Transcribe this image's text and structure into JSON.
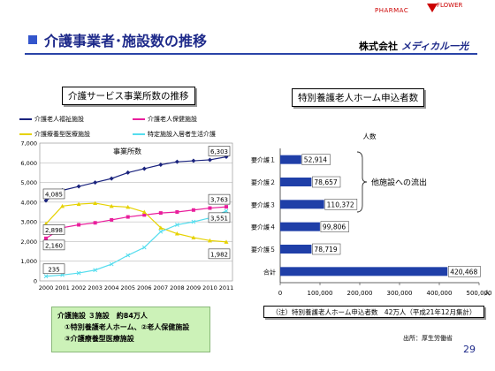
{
  "header": {
    "title": "介護事業者･施設数の推移",
    "logo_line1": "PHARMAC",
    "logo_line2": "FLOWER",
    "company_prefix": "株式会社",
    "company_name": "メディカル一光",
    "accent": "#1e2a8a"
  },
  "left_panel_title": "介護サービス事業所数の推移",
  "right_panel_title": "特別養護老人ホーム申込者数",
  "chart_data": [
    {
      "type": "line",
      "title": "事業所数",
      "x": [
        "2000",
        "2001",
        "2002",
        "2003",
        "2004",
        "2005",
        "2006",
        "2007",
        "2008",
        "2009",
        "2010",
        "2011"
      ],
      "ylim": [
        0,
        7000
      ],
      "yticks": [
        "0",
        "1,000",
        "2,000",
        "3,000",
        "4,000",
        "5,000",
        "6,000",
        "7,000"
      ],
      "grid": true,
      "legend_placement": "top",
      "series": [
        {
          "name": "介護老人福祉施設",
          "color": "#1a237e",
          "marker": "diamond",
          "values": [
            4085,
            4600,
            4800,
            5000,
            5200,
            5500,
            5700,
            5900,
            6050,
            6100,
            6150,
            6303
          ]
        },
        {
          "name": "介護老人保健施設",
          "color": "#e91e9c",
          "marker": "square",
          "values": [
            2160,
            2700,
            2850,
            2950,
            3100,
            3250,
            3350,
            3450,
            3500,
            3600,
            3700,
            3763
          ]
        },
        {
          "name": "介護療養型医療施設",
          "color": "#e6d200",
          "marker": "triangle",
          "values": [
            2898,
            3800,
            3900,
            3950,
            3800,
            3750,
            3500,
            2700,
            2400,
            2200,
            2050,
            1982
          ]
        },
        {
          "name": "特定施設入居者生活介護",
          "color": "#55ddee",
          "marker": "x",
          "values": [
            235,
            300,
            400,
            550,
            850,
            1300,
            1700,
            2500,
            2850,
            3000,
            3200,
            3551
          ]
        }
      ],
      "callouts": [
        "4,085",
        "2,898",
        "2,160",
        "235",
        "6,303",
        "3,763",
        "3,551",
        "1,982"
      ]
    },
    {
      "type": "bar",
      "orientation": "horizontal",
      "unit_label": "人数",
      "categories": [
        "要介護１",
        "要介護２",
        "要介護３",
        "要介護４",
        "要介護５",
        "合計"
      ],
      "values": [
        52914,
        78657,
        110372,
        99806,
        78719,
        420468
      ],
      "value_labels": [
        "52,914",
        "78,657",
        "110,372",
        "99,806",
        "78,719",
        "420,468"
      ],
      "xlim": [
        0,
        500000
      ],
      "xticks": [
        "0",
        "100,000",
        "200,000",
        "300,000",
        "400,000",
        "500,000"
      ],
      "xunit": "人",
      "bar_color": "#1f3fa8",
      "annotation": "他施設への流出"
    }
  ],
  "note_left": {
    "line1": "介護施設 ３施設　約84万人",
    "line2": "①特別養護老人ホーム、②老人保健施設",
    "line3": "③介護療養型医療施設"
  },
  "note_right": "（注）特別養護老人ホーム申込者数　42万人（平成21年12月集計）",
  "source": "出所：厚生労働省",
  "page_number": "29"
}
